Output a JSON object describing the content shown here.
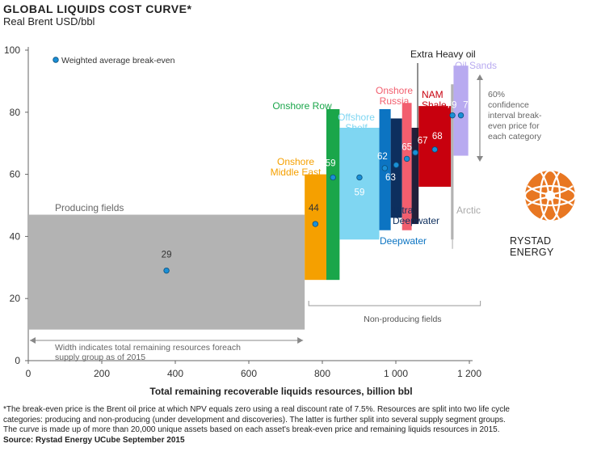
{
  "chart_data": {
    "type": "bar",
    "title": "GLOBAL LIQUIDS COST CURVE*",
    "subtitle": "Real Brent USD/bbl",
    "xlabel": "Total remaining recoverable liquids resources, billion  bbl",
    "ylabel": "",
    "xlim": [
      0,
      1200
    ],
    "ylim": [
      0,
      100
    ],
    "x_ticks": [
      0,
      200,
      400,
      600,
      800,
      1000,
      1200
    ],
    "x_tick_labels": [
      "0",
      "200",
      "400",
      "600",
      "800",
      "1 000",
      "1 200"
    ],
    "y_ticks": [
      0,
      20,
      40,
      60,
      80,
      100
    ],
    "y_tick_labels": [
      "0",
      "20",
      "40",
      "60",
      "80",
      "100"
    ],
    "grid": false,
    "legend_label": "Weighted average break-even",
    "segments": [
      {
        "name": "Producing fields",
        "x0": 0,
        "x1": 752,
        "low": 10,
        "high": 47,
        "avg": 29,
        "avg_x": 376,
        "color": "#b3b3b3",
        "label_text": "29"
      },
      {
        "name": "Onshore Middle East",
        "x0": 752,
        "x1": 811,
        "low": 26,
        "high": 60,
        "avg": 44,
        "avg_x": 781,
        "color": "#f5a000",
        "label_text": "44"
      },
      {
        "name": "Onshore Row",
        "x0": 811,
        "x1": 847,
        "low": 26,
        "high": 81,
        "avg": 59,
        "avg_x": 829,
        "color": "#1aa64a",
        "label_text": "59"
      },
      {
        "name": "Offshore Shelf",
        "x0": 847,
        "x1": 955,
        "low": 39,
        "high": 75,
        "avg": 59,
        "avg_x": 901,
        "color": "#7fd6f2",
        "label_text": "59"
      },
      {
        "name": "Deepwater",
        "x0": 955,
        "x1": 986,
        "low": 42,
        "high": 81,
        "avg": 62,
        "avg_x": 970,
        "color": "#0c74c2",
        "label_text": "62"
      },
      {
        "name": "Ultra Deepwater",
        "x0": 986,
        "x1": 1017,
        "low": 46,
        "high": 78,
        "avg": 63,
        "avg_x": 1001,
        "color": "#0d2f5e",
        "label_text": "63"
      },
      {
        "name": "Onshore Russia",
        "x0": 1017,
        "x1": 1043,
        "low": 42,
        "high": 83,
        "avg": 65,
        "avg_x": 1030,
        "color": "#f25e6e",
        "label_text": "65"
      },
      {
        "name": "Extra Heavy oil",
        "x0": 1043,
        "x1": 1062,
        "low": 44,
        "high": 75,
        "avg": 67,
        "avg_x": 1053,
        "color": "#221f3a",
        "label_text": "67"
      },
      {
        "name": "NAM Shale",
        "x0": 1062,
        "x1": 1150,
        "low": 56,
        "high": 82,
        "avg": 68,
        "avg_x": 1106,
        "color": "#c8000e",
        "label_text": "68"
      },
      {
        "name": "Arctic",
        "x0": 1150,
        "x1": 1157,
        "low": 39,
        "high": 89,
        "avg": 79,
        "avg_x": 1154,
        "color": "#b3b3b3",
        "label_text": "79"
      },
      {
        "name": "Oil Sands",
        "x0": 1157,
        "x1": 1197,
        "low": 66,
        "high": 95,
        "avg": 79,
        "avg_x": 1177,
        "color": "#b8aaf0",
        "label_text": "79"
      }
    ],
    "annotations": {
      "producing_width_note": "Width indicates total remaining resources for each supply group as of 2015",
      "non_producing_label": "Non-producing fields",
      "confidence_note": [
        "60%",
        "confidence",
        "interval break-",
        "even price for",
        "each category"
      ]
    }
  },
  "footnote": {
    "lines": [
      "*The break-even price is the Brent oil price at which NPV equals zero using a real discount rate of 7.5%. Resources are split into two life cycle",
      "categories: producing and non-producing (under development and discoveries). The latter is further split into several supply segment groups.",
      "The curve is made up of more than 20,000 unique assets based on each asset's break-even price and remaining liquids resources in 2015."
    ],
    "source": "Source: Rystad Energy UCube September 2015"
  },
  "logo": {
    "text": "RYSTAD ENERGY",
    "colors": {
      "primary": "#e87722",
      "secondary": "#ffffff"
    }
  },
  "colors": {
    "axis": "#555555",
    "marker_fill": "#1a8fd6",
    "marker_stroke": "#0b4f7a",
    "text": "#222222"
  }
}
